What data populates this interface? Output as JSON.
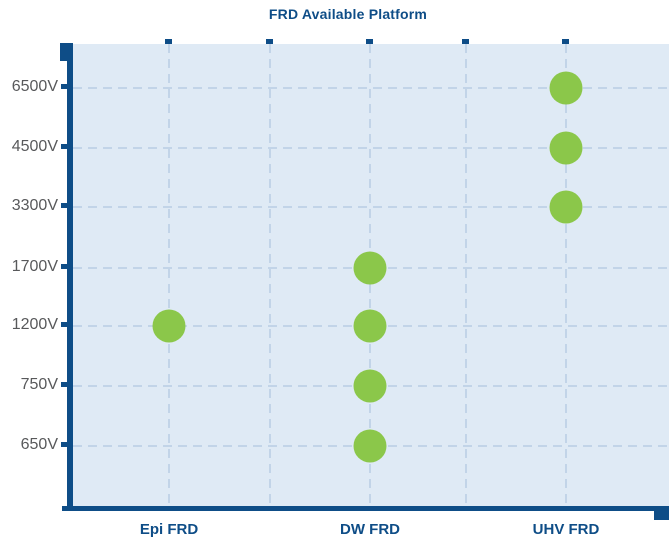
{
  "colors": {
    "navy": "#0e4d87",
    "dot_green": "#8bc74a",
    "plot_bg": "#dfeaf5",
    "grid": "#c2d4e8",
    "gray": "#58595b"
  },
  "chart_data": {
    "type": "scatter",
    "title": "FRD Available Platform",
    "xlabel": "",
    "ylabel": "",
    "grid": true,
    "legend": false,
    "categories": [
      "Epi FRD",
      "DW FRD",
      "UHV FRD"
    ],
    "y_ticks": [
      "6500V",
      "4500V",
      "3300V",
      "1700V",
      "1200V",
      "750V",
      "650V"
    ],
    "points": [
      {
        "platform": "Epi FRD",
        "voltage": "1200V"
      },
      {
        "platform": "DW FRD",
        "voltage": "1700V"
      },
      {
        "platform": "DW FRD",
        "voltage": "1200V"
      },
      {
        "platform": "DW FRD",
        "voltage": "750V"
      },
      {
        "platform": "DW FRD",
        "voltage": "650V"
      },
      {
        "platform": "UHV FRD",
        "voltage": "6500V"
      },
      {
        "platform": "UHV FRD",
        "voltage": "4500V"
      },
      {
        "platform": "UHV FRD",
        "voltage": "3300V"
      }
    ],
    "series": [
      {
        "name": "Epi FRD",
        "voltages": [
          1200
        ]
      },
      {
        "name": "DW FRD",
        "voltages": [
          650,
          750,
          1200,
          1700
        ]
      },
      {
        "name": "UHV FRD",
        "voltages": [
          3300,
          4500,
          6500
        ]
      }
    ]
  }
}
